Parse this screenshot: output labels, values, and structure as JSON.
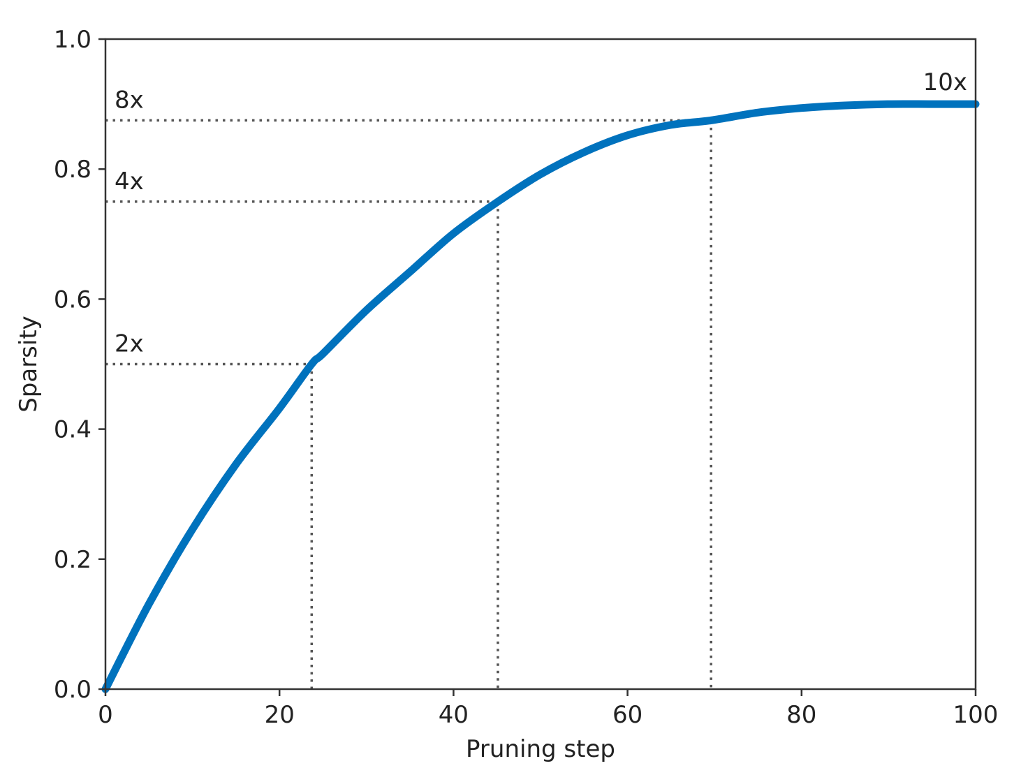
{
  "chart_data": {
    "type": "line",
    "title": "",
    "xlabel": "Pruning step",
    "ylabel": "Sparsity",
    "xlim": [
      0,
      100
    ],
    "ylim": [
      0,
      1.0
    ],
    "xticks": [
      "0",
      "20",
      "40",
      "60",
      "80",
      "100"
    ],
    "yticks": [
      "0.0",
      "0.2",
      "0.4",
      "0.6",
      "0.8",
      "1.0"
    ],
    "grid": false,
    "legend": "none",
    "series": [
      {
        "color": "#0072bd",
        "x": [
          0,
          5,
          10,
          15,
          20,
          23.7,
          25,
          30,
          35,
          40,
          45.1,
          50,
          55,
          60,
          65,
          69.6,
          75,
          80,
          85,
          90,
          95,
          100
        ],
        "y": [
          0.0,
          0.131,
          0.246,
          0.346,
          0.432,
          0.5,
          0.516,
          0.583,
          0.642,
          0.701,
          0.75,
          0.792,
          0.826,
          0.852,
          0.868,
          0.875,
          0.887,
          0.894,
          0.898,
          0.9,
          0.9,
          0.9
        ]
      }
    ],
    "reference_lines": [
      {
        "label": "2x",
        "x": 23.7,
        "y": 0.5
      },
      {
        "label": "4x",
        "x": 45.1,
        "y": 0.75
      },
      {
        "label": "8x",
        "x": 69.6,
        "y": 0.875
      }
    ],
    "annotations": [
      {
        "text": "10x",
        "x": 100,
        "y": 0.9
      }
    ],
    "line_color": "#0072bd",
    "reference_color": "#555555"
  }
}
